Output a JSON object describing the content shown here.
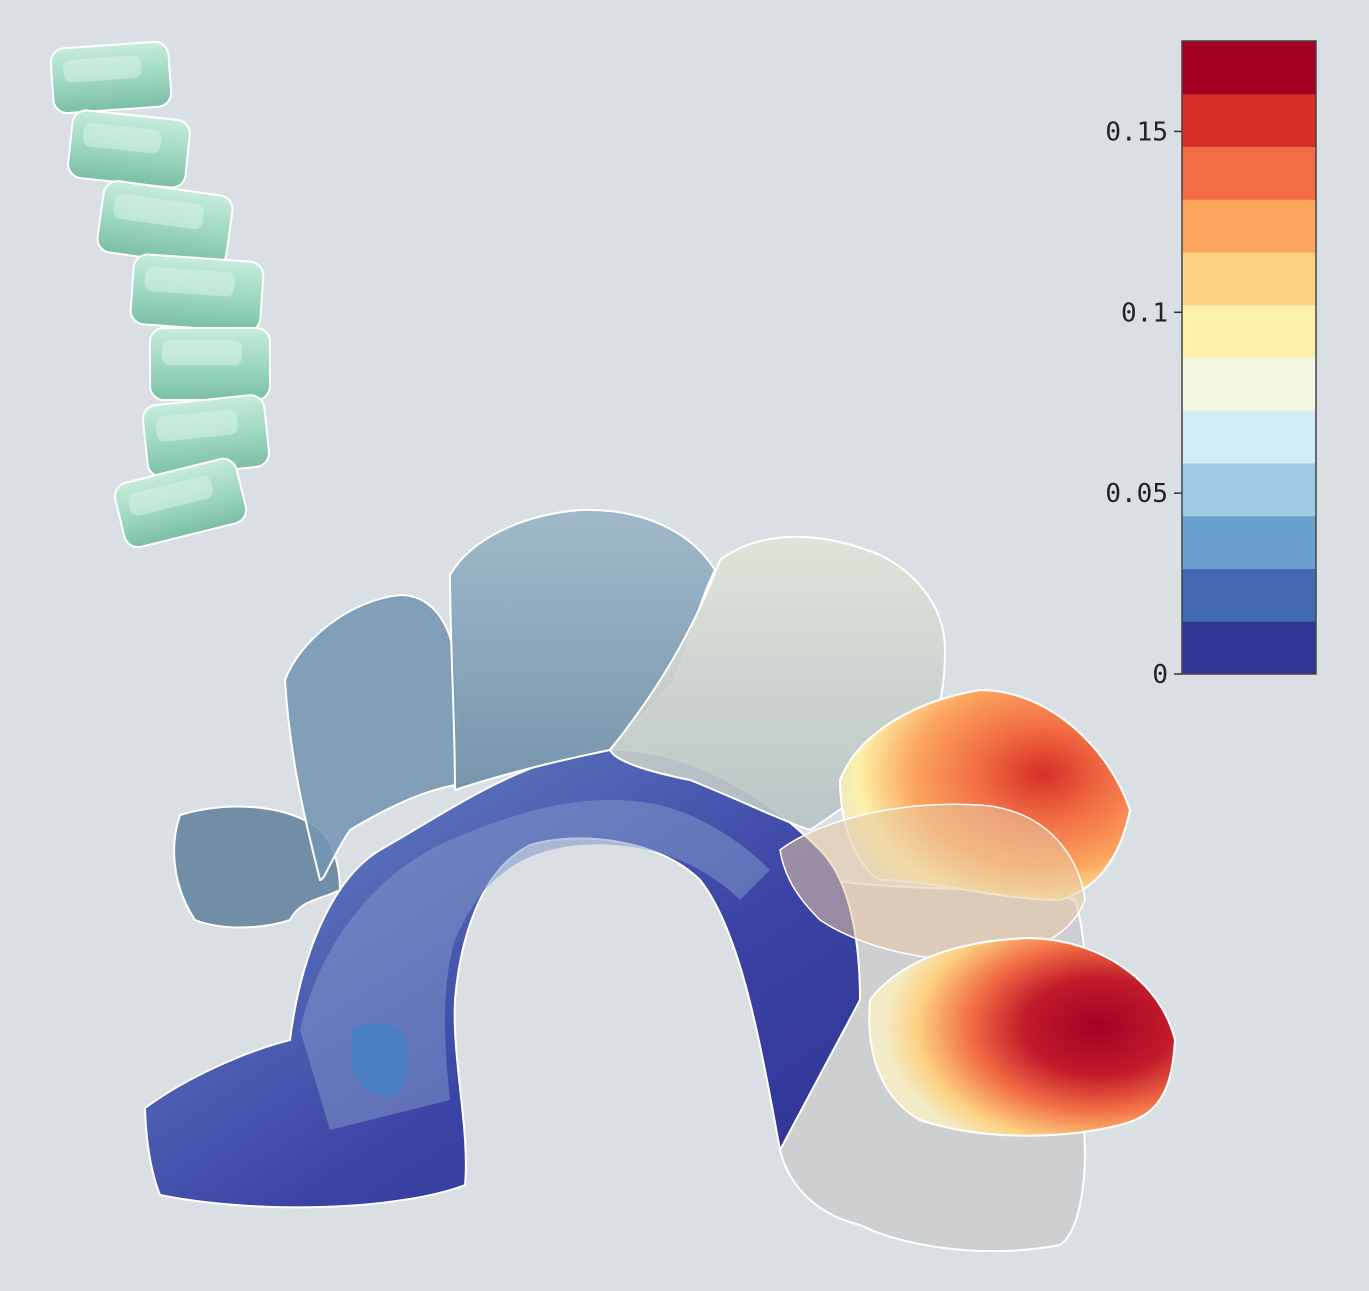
{
  "colorbar": {
    "min": 0,
    "max": 0.175,
    "ticks": [
      {
        "value": 0,
        "label": "0"
      },
      {
        "value": 0.05,
        "label": "0.05"
      },
      {
        "value": 0.1,
        "label": "0.1"
      },
      {
        "value": 0.15,
        "label": "0.15"
      }
    ],
    "colors": [
      "#313695",
      "#4169b0",
      "#6a9fcd",
      "#9dcde3",
      "#d0ecf4",
      "#f1f7e0",
      "#fdf1a9",
      "#fdd282",
      "#fca55d",
      "#f26d45",
      "#d62f27",
      "#a40026"
    ]
  },
  "legend_model": {
    "color": "#9fd9c1"
  }
}
